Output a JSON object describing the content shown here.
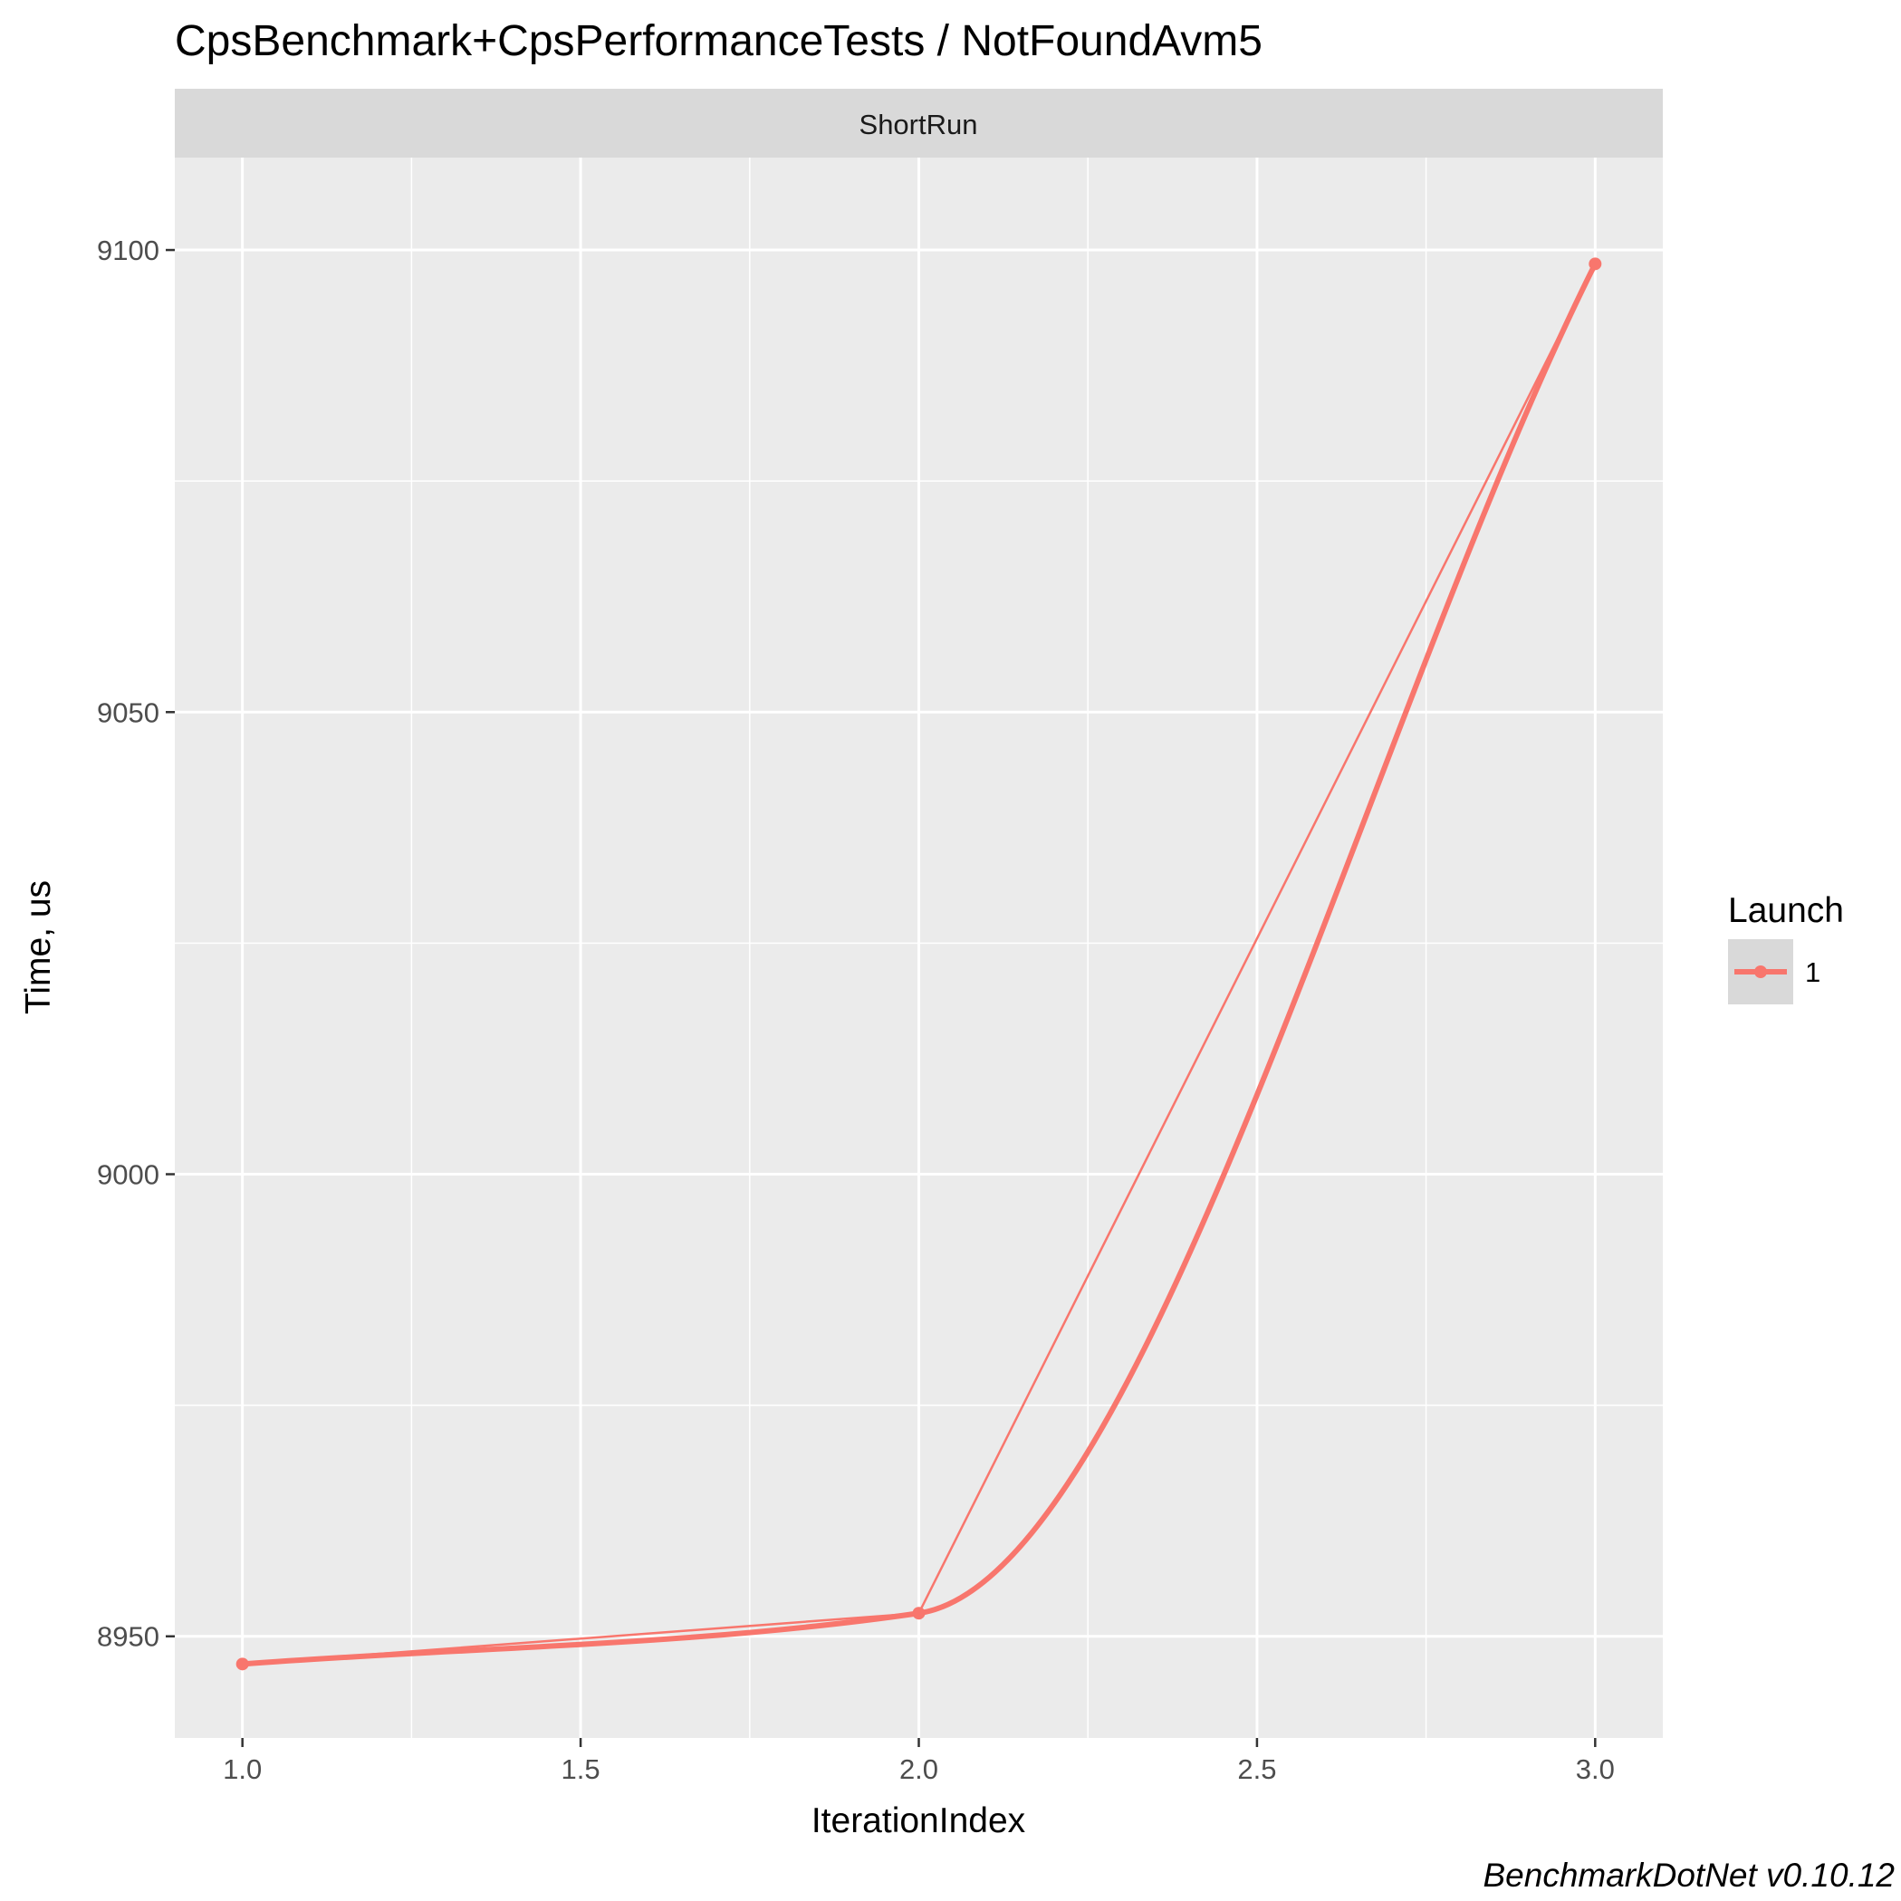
{
  "chart_data": {
    "type": "line",
    "title": "CpsBenchmark+CpsPerformanceTests / NotFoundAvm5",
    "facet": "ShortRun",
    "xlabel": "IterationIndex",
    "ylabel": "Time, us",
    "xlim": [
      0.9,
      3.1
    ],
    "ylim": [
      8939,
      9110
    ],
    "x_ticks": [
      1.0,
      1.5,
      2.0,
      2.5,
      3.0
    ],
    "x_tick_labels": [
      "1.0",
      "1.5",
      "2.0",
      "2.5",
      "3.0"
    ],
    "y_ticks": [
      8950,
      9000,
      9050,
      9100
    ],
    "y_tick_labels": [
      "8950",
      "9000",
      "9050",
      "9100"
    ],
    "grid": true,
    "legend": {
      "title": "Launch",
      "position": "right",
      "entries": [
        {
          "label": "1",
          "color": "#F8766D"
        }
      ]
    },
    "series": [
      {
        "name": "1",
        "color": "#F8766D",
        "x": [
          1,
          2,
          3
        ],
        "y": [
          8947,
          8952.5,
          9098.5
        ]
      }
    ]
  },
  "caption": "BenchmarkDotNet v0.10.12",
  "colors": {
    "panel_background": "#EBEBEB",
    "strip_background": "#D9D9D9",
    "grid": "#FFFFFF",
    "series": "#F8766D"
  }
}
